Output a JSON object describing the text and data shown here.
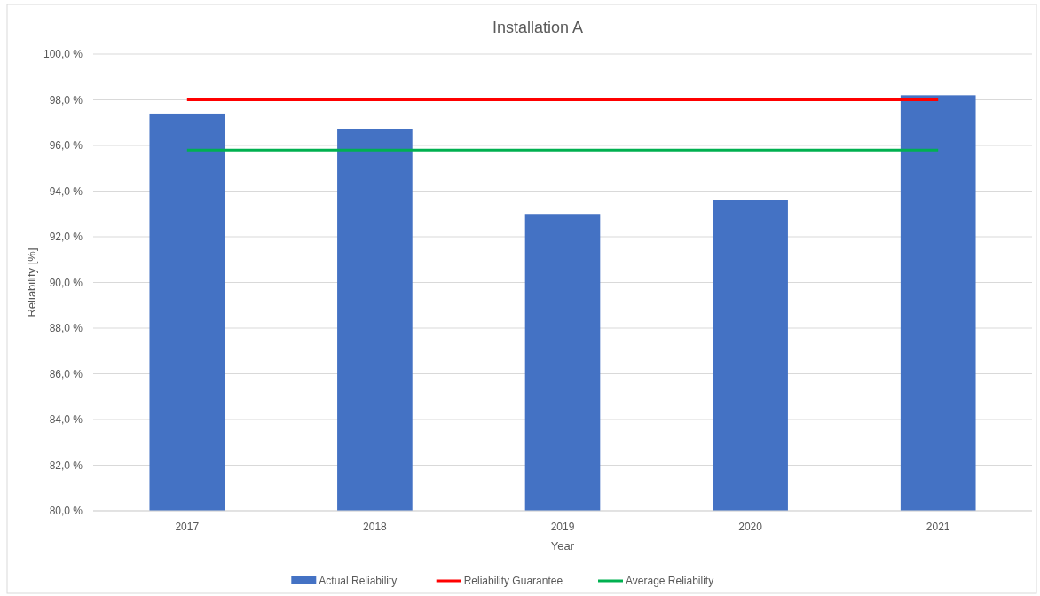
{
  "chart_data": {
    "type": "bar",
    "title": "Installation A",
    "xlabel": "Year",
    "ylabel": "Reliability [%]",
    "categories": [
      "2017",
      "2018",
      "2019",
      "2020",
      "2021"
    ],
    "series": [
      {
        "name": "Actual Reliability",
        "color": "#4472c4",
        "values": [
          97.4,
          96.7,
          93.0,
          93.6,
          98.2
        ]
      },
      {
        "name": "Reliability Guarantee",
        "type": "line",
        "color": "#ff0000",
        "values": [
          98.0,
          98.0,
          98.0,
          98.0,
          98.0
        ]
      },
      {
        "name": "Average Reliability",
        "type": "line",
        "color": "#00b050",
        "values": [
          95.8,
          95.8,
          95.8,
          95.8,
          95.8
        ]
      }
    ],
    "ylim": [
      80,
      100
    ],
    "yticks": [
      {
        "value": 80,
        "label": "80,0 %"
      },
      {
        "value": 82,
        "label": "82,0 %"
      },
      {
        "value": 84,
        "label": "84,0 %"
      },
      {
        "value": 86,
        "label": "86,0 %"
      },
      {
        "value": 88,
        "label": "88,0 %"
      },
      {
        "value": 90,
        "label": "90,0 %"
      },
      {
        "value": 92,
        "label": "92,0 %"
      },
      {
        "value": 94,
        "label": "94,0 %"
      },
      {
        "value": 96,
        "label": "96,0 %"
      },
      {
        "value": 98,
        "label": "98,0 %"
      },
      {
        "value": 100,
        "label": "100,0 %"
      }
    ],
    "grid": "y",
    "legend": "bottom",
    "marker": "none",
    "line_style": "solid"
  }
}
